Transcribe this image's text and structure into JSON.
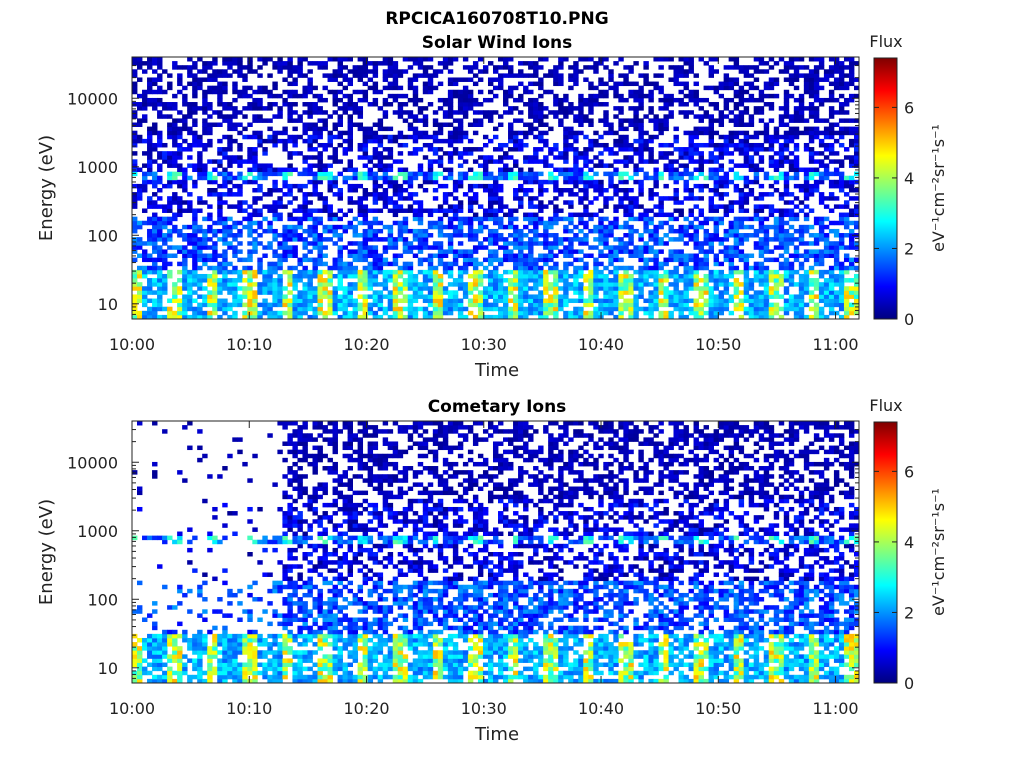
{
  "figure_title": "RPCICA160708T10.PNG",
  "colors": {
    "colormap": [
      "#00007f",
      "#0000ff",
      "#007fff",
      "#00ffff",
      "#7fff7f",
      "#ffff00",
      "#ff7f00",
      "#ff0000",
      "#7f0000"
    ],
    "background": "#ffffff",
    "axis": "#222222"
  },
  "chart_data": [
    {
      "type": "heatmap",
      "title": "Solar Wind Ions",
      "xlabel": "Time",
      "ylabel": "Energy (eV)",
      "x_ticks": [
        "10:00",
        "10:10",
        "10:20",
        "10:30",
        "10:40",
        "10:50",
        "11:00"
      ],
      "xlim": [
        "10:00",
        "11:02"
      ],
      "y_scale": "log",
      "y_ticks": [
        "10",
        "100",
        "1000",
        "10000"
      ],
      "ylim": [
        6,
        40000
      ],
      "colorbar": {
        "title": "Flux",
        "label": "eV⁻¹cm⁻²sr⁻¹s⁻¹",
        "ticks": [
          "0",
          "2",
          "4",
          "6"
        ],
        "range": [
          0,
          7.4
        ]
      },
      "features": {
        "line_band_energy_eV": 750,
        "line_band_flux": 3.5,
        "low_energy_max_flux": 5.2,
        "low_energy_range_eV": [
          6,
          30
        ],
        "sparse_before": null
      }
    },
    {
      "type": "heatmap",
      "title": "Cometary Ions",
      "xlabel": "Time",
      "ylabel": "Energy (eV)",
      "x_ticks": [
        "10:00",
        "10:10",
        "10:20",
        "10:30",
        "10:40",
        "10:50",
        "11:00"
      ],
      "xlim": [
        "10:00",
        "11:02"
      ],
      "y_scale": "log",
      "y_ticks": [
        "10",
        "100",
        "1000",
        "10000"
      ],
      "ylim": [
        6,
        40000
      ],
      "colorbar": {
        "title": "Flux",
        "label": "eV⁻¹cm⁻²sr⁻¹s⁻¹",
        "ticks": [
          "0",
          "2",
          "4",
          "6"
        ],
        "range": [
          0,
          7.4
        ]
      },
      "features": {
        "line_band_energy_eV": 750,
        "line_band_flux": 3.5,
        "low_energy_max_flux": 5.2,
        "low_energy_range_eV": [
          6,
          30
        ],
        "sparse_before": "10:13"
      }
    }
  ]
}
